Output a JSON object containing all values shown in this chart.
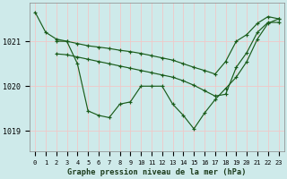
{
  "bg_color": "#ceeaea",
  "grid_color_major": "#f0c8c8",
  "grid_color_minor": "#ffffff",
  "line_color": "#1a5c1a",
  "marker_color": "#1a5c1a",
  "title": "Graphe pression niveau de la mer (hPa)",
  "yticks": [
    1019,
    1020,
    1021
  ],
  "ylim": [
    1018.55,
    1021.85
  ],
  "xlim": [
    -0.5,
    23.5
  ],
  "series": [
    {
      "x": [
        0,
        1,
        2,
        3,
        4,
        5,
        6,
        7,
        8,
        9,
        10,
        11,
        12,
        13,
        14,
        15,
        16,
        17,
        18,
        19,
        20,
        21,
        22,
        23
      ],
      "y": [
        1021.65,
        1021.2,
        1021.05,
        1021.0,
        1020.5,
        1019.45,
        1019.35,
        1019.3,
        1019.6,
        1019.65,
        1020.0,
        1020.0,
        1020.0,
        1019.6,
        1019.35,
        1019.05,
        1019.4,
        1019.7,
        1019.95,
        1020.2,
        1020.55,
        1021.05,
        1021.4,
        1021.5
      ]
    },
    {
      "x": [
        2,
        3,
        4,
        5,
        6,
        7,
        8,
        9,
        10,
        11,
        12,
        13,
        14,
        15,
        16,
        17,
        18,
        19,
        20,
        21,
        22,
        23
      ],
      "y": [
        1021.0,
        1021.0,
        1020.95,
        1020.9,
        1020.87,
        1020.84,
        1020.8,
        1020.77,
        1020.73,
        1020.68,
        1020.63,
        1020.58,
        1020.5,
        1020.42,
        1020.35,
        1020.27,
        1020.55,
        1021.0,
        1021.15,
        1021.4,
        1021.55,
        1021.5
      ]
    },
    {
      "x": [
        2,
        3,
        4,
        5,
        6,
        7,
        8,
        9,
        10,
        11,
        12,
        13,
        14,
        15,
        16,
        17,
        18,
        19,
        20,
        21,
        22,
        23
      ],
      "y": [
        1020.72,
        1020.7,
        1020.65,
        1020.6,
        1020.55,
        1020.5,
        1020.45,
        1020.4,
        1020.35,
        1020.3,
        1020.25,
        1020.2,
        1020.12,
        1020.02,
        1019.9,
        1019.78,
        1019.82,
        1020.42,
        1020.75,
        1021.2,
        1021.42,
        1021.42
      ]
    }
  ]
}
